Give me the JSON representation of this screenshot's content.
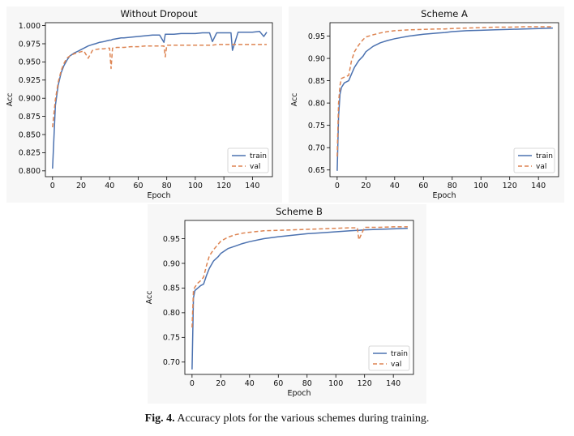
{
  "caption": {
    "label": "Fig. 4.",
    "text": "Accuracy plots for the various schemes during training."
  },
  "colors": {
    "train": "#4c72b0",
    "val": "#dd8452"
  },
  "chart_data": [
    {
      "type": "line",
      "title": "Without Dropout",
      "xlabel": "Epoch",
      "ylabel": "Acc",
      "xlim": [
        -5,
        154
      ],
      "ylim": [
        0.792,
        1.004
      ],
      "xticks": [
        0,
        20,
        40,
        60,
        80,
        100,
        120,
        140
      ],
      "yticks": [
        0.8,
        0.825,
        0.85,
        0.875,
        0.9,
        0.925,
        0.95,
        0.975,
        1.0
      ],
      "ytick_labels": [
        "0.800",
        "0.825",
        "0.850",
        "0.875",
        "0.900",
        "0.925",
        "0.950",
        "0.975",
        "1.000"
      ],
      "legend_position": "lower-right",
      "x": [
        0,
        2,
        4,
        6,
        8,
        10,
        12,
        15,
        18,
        20,
        22,
        25,
        28,
        30,
        33,
        36,
        38,
        40,
        41,
        42,
        45,
        48,
        50,
        55,
        60,
        65,
        70,
        75,
        78,
        79,
        80,
        85,
        90,
        95,
        100,
        105,
        110,
        112,
        115,
        120,
        125,
        126,
        130,
        135,
        140,
        145,
        148,
        150
      ],
      "series": [
        {
          "name": "train",
          "values": [
            0.803,
            0.89,
            0.918,
            0.935,
            0.945,
            0.952,
            0.958,
            0.962,
            0.965,
            0.967,
            0.969,
            0.972,
            0.974,
            0.975,
            0.977,
            0.978,
            0.979,
            0.98,
            0.98,
            0.981,
            0.982,
            0.983,
            0.983,
            0.984,
            0.985,
            0.986,
            0.987,
            0.987,
            0.977,
            0.988,
            0.988,
            0.988,
            0.989,
            0.989,
            0.989,
            0.99,
            0.99,
            0.978,
            0.99,
            0.99,
            0.99,
            0.966,
            0.991,
            0.991,
            0.991,
            0.992,
            0.985,
            0.991
          ]
        },
        {
          "name": "val",
          "values": [
            0.86,
            0.898,
            0.922,
            0.938,
            0.948,
            0.955,
            0.958,
            0.961,
            0.963,
            0.964,
            0.965,
            0.955,
            0.966,
            0.967,
            0.968,
            0.968,
            0.969,
            0.969,
            0.941,
            0.969,
            0.97,
            0.97,
            0.97,
            0.971,
            0.971,
            0.972,
            0.972,
            0.972,
            0.972,
            0.957,
            0.973,
            0.973,
            0.973,
            0.973,
            0.973,
            0.973,
            0.973,
            0.973,
            0.974,
            0.974,
            0.974,
            0.974,
            0.974,
            0.974,
            0.974,
            0.974,
            0.974,
            0.974
          ]
        }
      ]
    },
    {
      "type": "line",
      "title": "Scheme A",
      "xlabel": "Epoch",
      "ylabel": "Acc",
      "xlim": [
        -5,
        154
      ],
      "ylim": [
        0.635,
        0.98
      ],
      "xticks": [
        0,
        20,
        40,
        60,
        80,
        100,
        120,
        140
      ],
      "yticks": [
        0.65,
        0.7,
        0.75,
        0.8,
        0.85,
        0.9,
        0.95
      ],
      "ytick_labels": [
        "0.65",
        "0.70",
        "0.75",
        "0.80",
        "0.85",
        "0.90",
        "0.95"
      ],
      "legend_position": "lower-right",
      "x": [
        0,
        1,
        2,
        3,
        5,
        8,
        10,
        12,
        15,
        18,
        20,
        25,
        30,
        35,
        40,
        50,
        60,
        70,
        75,
        80,
        90,
        100,
        110,
        120,
        130,
        140,
        150
      ],
      "series": [
        {
          "name": "train",
          "values": [
            0.648,
            0.77,
            0.82,
            0.835,
            0.845,
            0.85,
            0.865,
            0.88,
            0.895,
            0.905,
            0.915,
            0.927,
            0.935,
            0.94,
            0.944,
            0.95,
            0.954,
            0.957,
            0.958,
            0.96,
            0.962,
            0.963,
            0.964,
            0.965,
            0.966,
            0.967,
            0.968
          ]
        },
        {
          "name": "val",
          "values": [
            0.68,
            0.8,
            0.84,
            0.855,
            0.858,
            0.862,
            0.895,
            0.915,
            0.93,
            0.942,
            0.948,
            0.953,
            0.957,
            0.96,
            0.962,
            0.964,
            0.965,
            0.966,
            0.966,
            0.967,
            0.968,
            0.969,
            0.97,
            0.97,
            0.971,
            0.971,
            0.971
          ]
        }
      ]
    },
    {
      "type": "line",
      "title": "Scheme B",
      "xlabel": "Epoch",
      "ylabel": "Acc",
      "xlim": [
        -5,
        154
      ],
      "ylim": [
        0.675,
        0.987
      ],
      "xticks": [
        0,
        20,
        40,
        60,
        80,
        100,
        120,
        140
      ],
      "yticks": [
        0.7,
        0.75,
        0.8,
        0.85,
        0.9,
        0.95
      ],
      "ytick_labels": [
        "0.70",
        "0.75",
        "0.80",
        "0.85",
        "0.90",
        "0.95"
      ],
      "legend_position": "lower-right",
      "x": [
        0,
        1,
        2,
        4,
        6,
        8,
        10,
        12,
        15,
        18,
        20,
        25,
        30,
        35,
        40,
        50,
        60,
        70,
        80,
        90,
        100,
        110,
        115,
        116,
        120,
        130,
        140,
        150
      ],
      "series": [
        {
          "name": "train",
          "values": [
            0.685,
            0.83,
            0.845,
            0.85,
            0.855,
            0.858,
            0.875,
            0.89,
            0.905,
            0.913,
            0.92,
            0.93,
            0.935,
            0.94,
            0.944,
            0.95,
            0.954,
            0.957,
            0.96,
            0.962,
            0.964,
            0.966,
            0.967,
            0.967,
            0.968,
            0.969,
            0.97,
            0.971
          ]
        },
        {
          "name": "val",
          "values": [
            0.77,
            0.845,
            0.852,
            0.86,
            0.865,
            0.872,
            0.895,
            0.915,
            0.928,
            0.938,
            0.945,
            0.953,
            0.958,
            0.961,
            0.963,
            0.966,
            0.967,
            0.968,
            0.969,
            0.97,
            0.971,
            0.972,
            0.972,
            0.948,
            0.973,
            0.973,
            0.974,
            0.974
          ]
        }
      ]
    }
  ]
}
